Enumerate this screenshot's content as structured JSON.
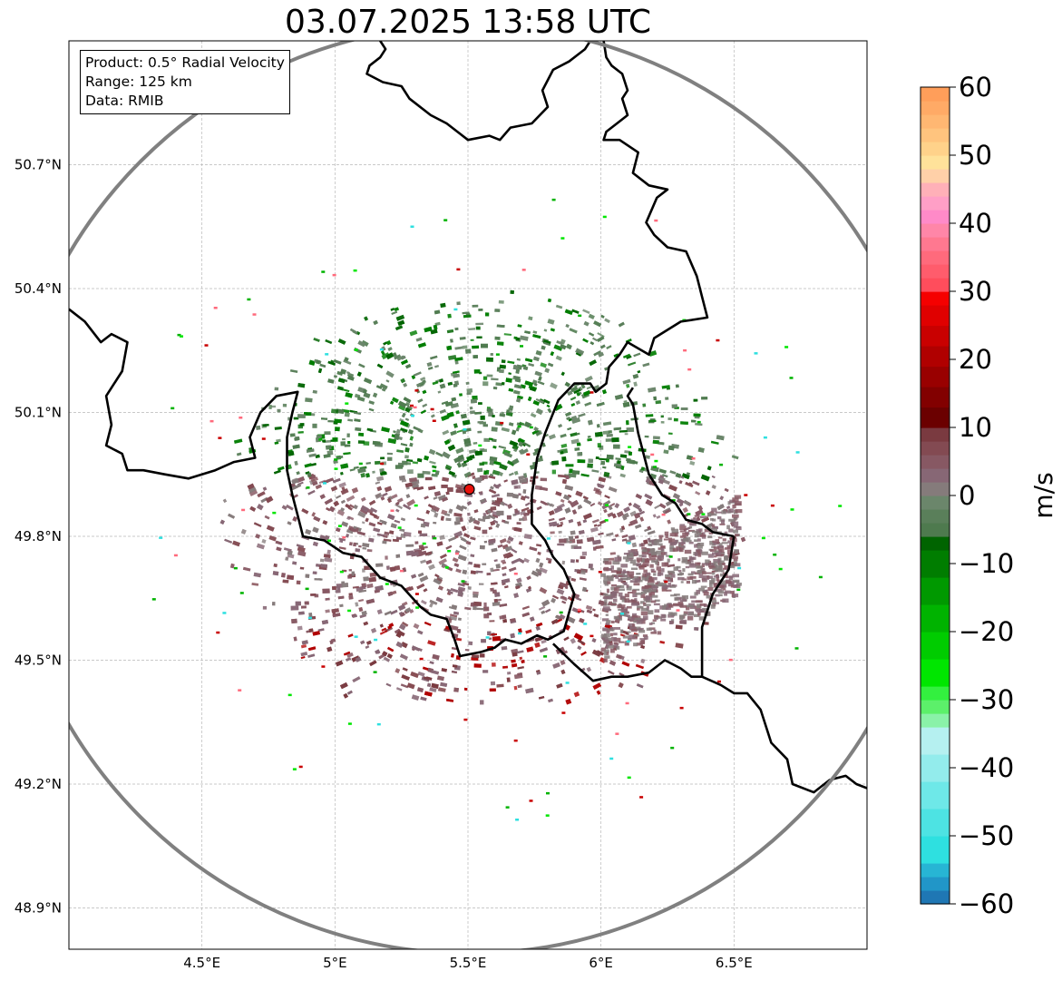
{
  "title": "03.07.2025 13:58 UTC",
  "info_box": {
    "product": "Product: 0.5° Radial Velocity",
    "range": "Range: 125 km",
    "data": "Data: RMIB"
  },
  "axes": {
    "lon_ticks": [
      {
        "value": 4.5,
        "label": "4.5°E"
      },
      {
        "value": 5.0,
        "label": "5°E"
      },
      {
        "value": 5.5,
        "label": "5.5°E"
      },
      {
        "value": 6.0,
        "label": "6°E"
      },
      {
        "value": 6.5,
        "label": "6.5°E"
      }
    ],
    "lat_ticks": [
      {
        "value": 48.9,
        "label": "48.9°N"
      },
      {
        "value": 49.2,
        "label": "49.2°N"
      },
      {
        "value": 49.5,
        "label": "49.5°N"
      },
      {
        "value": 49.8,
        "label": "49.8°N"
      },
      {
        "value": 50.1,
        "label": "50.1°N"
      },
      {
        "value": 50.4,
        "label": "50.4°N"
      },
      {
        "value": 50.7,
        "label": "50.7°N"
      }
    ],
    "lon_range": [
      4.0,
      7.0
    ],
    "lat_range": [
      48.8,
      51.0
    ],
    "grid": true
  },
  "radar": {
    "site": {
      "lon": 5.505,
      "lat": 49.914
    },
    "range_km": 125
  },
  "colorbar": {
    "label": "m/s",
    "range": [
      -60,
      60
    ],
    "ticks": [
      {
        "value": 60,
        "label": "60"
      },
      {
        "value": 50,
        "label": "50"
      },
      {
        "value": 40,
        "label": "40"
      },
      {
        "value": 30,
        "label": "30"
      },
      {
        "value": 20,
        "label": "20"
      },
      {
        "value": 10,
        "label": "10"
      },
      {
        "value": 0,
        "label": "0"
      },
      {
        "value": -10,
        "label": "−10"
      },
      {
        "value": -20,
        "label": "−20"
      },
      {
        "value": -30,
        "label": "−30"
      },
      {
        "value": -40,
        "label": "−40"
      },
      {
        "value": -50,
        "label": "−50"
      },
      {
        "value": -60,
        "label": "−60"
      }
    ],
    "stops": [
      {
        "from": -60,
        "to": -58,
        "color": "#1f77b4"
      },
      {
        "from": -58,
        "to": -56,
        "color": "#2196c8"
      },
      {
        "from": -56,
        "to": -54,
        "color": "#27b5d4"
      },
      {
        "from": -54,
        "to": -50,
        "color": "#2ee0e0"
      },
      {
        "from": -50,
        "to": -46,
        "color": "#4de3e3"
      },
      {
        "from": -46,
        "to": -42,
        "color": "#6ee8e8"
      },
      {
        "from": -42,
        "to": -38,
        "color": "#93ecec"
      },
      {
        "from": -38,
        "to": -34,
        "color": "#b5f0f0"
      },
      {
        "from": -34,
        "to": -32,
        "color": "#8af2a8"
      },
      {
        "from": -32,
        "to": -30,
        "color": "#5cf06a"
      },
      {
        "from": -30,
        "to": -28,
        "color": "#33f03f"
      },
      {
        "from": -28,
        "to": -24,
        "color": "#00e600"
      },
      {
        "from": -24,
        "to": -20,
        "color": "#00cc00"
      },
      {
        "from": -20,
        "to": -16,
        "color": "#00b300"
      },
      {
        "from": -16,
        "to": -12,
        "color": "#009900"
      },
      {
        "from": -12,
        "to": -8,
        "color": "#007d00"
      },
      {
        "from": -8,
        "to": -6,
        "color": "#006400"
      },
      {
        "from": -6,
        "to": -4,
        "color": "#4e7a4e"
      },
      {
        "from": -4,
        "to": -2,
        "color": "#5a7f5a"
      },
      {
        "from": -2,
        "to": 0,
        "color": "#6b866b"
      },
      {
        "from": 0,
        "to": 2,
        "color": "#857b7b"
      },
      {
        "from": 2,
        "to": 4,
        "color": "#876775"
      },
      {
        "from": 4,
        "to": 6,
        "color": "#875863"
      },
      {
        "from": 6,
        "to": 8,
        "color": "#834a52"
      },
      {
        "from": 8,
        "to": 10,
        "color": "#7a3a40"
      },
      {
        "from": 10,
        "to": 13,
        "color": "#6b0000"
      },
      {
        "from": 13,
        "to": 16,
        "color": "#820000"
      },
      {
        "from": 16,
        "to": 19,
        "color": "#990000"
      },
      {
        "from": 19,
        "to": 22,
        "color": "#b00000"
      },
      {
        "from": 22,
        "to": 25,
        "color": "#c90000"
      },
      {
        "from": 25,
        "to": 28,
        "color": "#e00000"
      },
      {
        "from": 28,
        "to": 30,
        "color": "#f50000"
      },
      {
        "from": 30,
        "to": 32,
        "color": "#ff4d5c"
      },
      {
        "from": 32,
        "to": 34,
        "color": "#ff5c6c"
      },
      {
        "from": 34,
        "to": 36,
        "color": "#ff6a7c"
      },
      {
        "from": 36,
        "to": 38,
        "color": "#ff7890"
      },
      {
        "from": 38,
        "to": 40,
        "color": "#ff86a8"
      },
      {
        "from": 40,
        "to": 42,
        "color": "#ff8ac8"
      },
      {
        "from": 42,
        "to": 44,
        "color": "#ff9fc6"
      },
      {
        "from": 44,
        "to": 46,
        "color": "#ffb0b8"
      },
      {
        "from": 46,
        "to": 48,
        "color": "#ffd0a8"
      },
      {
        "from": 48,
        "to": 50,
        "color": "#ffe29a"
      },
      {
        "from": 50,
        "to": 52,
        "color": "#ffd28a"
      },
      {
        "from": 52,
        "to": 54,
        "color": "#ffc47e"
      },
      {
        "from": 54,
        "to": 56,
        "color": "#ffb772"
      },
      {
        "from": 56,
        "to": 58,
        "color": "#ffaa66"
      },
      {
        "from": 58,
        "to": 60,
        "color": "#ff9e5a"
      }
    ]
  },
  "borders": {
    "belgium_luxembourg_main": [
      [
        4.0,
        50.35
      ],
      [
        4.06,
        50.32
      ],
      [
        4.12,
        50.27
      ],
      [
        4.16,
        50.29
      ],
      [
        4.22,
        50.27
      ],
      [
        4.2,
        50.2
      ],
      [
        4.14,
        50.14
      ],
      [
        4.16,
        50.07
      ],
      [
        4.14,
        50.02
      ],
      [
        4.2,
        50.0
      ],
      [
        4.22,
        49.96
      ],
      [
        4.28,
        49.96
      ],
      [
        4.36,
        49.95
      ],
      [
        4.45,
        49.94
      ],
      [
        4.55,
        49.96
      ],
      [
        4.62,
        49.98
      ],
      [
        4.7,
        49.99
      ],
      [
        4.68,
        50.04
      ],
      [
        4.72,
        50.1
      ],
      [
        4.78,
        50.14
      ],
      [
        4.86,
        50.15
      ],
      [
        4.84,
        50.1
      ],
      [
        4.82,
        50.04
      ],
      [
        4.82,
        49.96
      ],
      [
        4.84,
        49.9
      ],
      [
        4.86,
        49.85
      ],
      [
        4.88,
        49.8
      ],
      [
        4.96,
        49.79
      ],
      [
        5.03,
        49.76
      ],
      [
        5.1,
        49.75
      ],
      [
        5.17,
        49.7
      ],
      [
        5.25,
        49.68
      ],
      [
        5.32,
        49.63
      ],
      [
        5.36,
        49.61
      ],
      [
        5.42,
        49.6
      ],
      [
        5.45,
        49.55
      ],
      [
        5.47,
        49.51
      ],
      [
        5.55,
        49.52
      ],
      [
        5.6,
        49.53
      ],
      [
        5.64,
        49.55
      ],
      [
        5.7,
        49.54
      ],
      [
        5.76,
        49.56
      ],
      [
        5.8,
        49.55
      ],
      [
        5.86,
        49.57
      ],
      [
        5.9,
        49.66
      ],
      [
        5.86,
        49.72
      ],
      [
        5.82,
        49.75
      ],
      [
        5.79,
        49.79
      ],
      [
        5.74,
        49.83
      ],
      [
        5.74,
        49.9
      ],
      [
        5.76,
        49.99
      ],
      [
        5.79,
        50.05
      ],
      [
        5.84,
        50.13
      ],
      [
        5.9,
        50.17
      ],
      [
        5.96,
        50.17
      ],
      [
        5.98,
        50.15
      ],
      [
        6.02,
        50.17
      ],
      [
        6.03,
        50.21
      ],
      [
        6.07,
        50.24
      ],
      [
        6.1,
        50.27
      ],
      [
        6.18,
        50.24
      ],
      [
        6.2,
        50.28
      ],
      [
        6.3,
        50.32
      ],
      [
        6.4,
        50.33
      ],
      [
        6.38,
        50.38
      ],
      [
        6.36,
        50.43
      ],
      [
        6.32,
        50.49
      ],
      [
        6.25,
        50.5
      ],
      [
        6.2,
        50.53
      ],
      [
        6.17,
        50.56
      ],
      [
        6.21,
        50.62
      ],
      [
        6.25,
        50.64
      ],
      [
        6.18,
        50.65
      ],
      [
        6.12,
        50.68
      ],
      [
        6.14,
        50.73
      ],
      [
        6.07,
        50.76
      ],
      [
        6.01,
        50.76
      ],
      [
        6.02,
        50.78
      ],
      [
        6.06,
        50.8
      ],
      [
        6.1,
        50.82
      ],
      [
        6.08,
        50.86
      ],
      [
        6.1,
        50.88
      ],
      [
        6.08,
        50.92
      ],
      [
        6.04,
        50.94
      ],
      [
        6.02,
        50.96
      ],
      [
        6.01,
        51.0
      ]
    ],
    "luxembourg_east_germany": [
      [
        6.5,
        49.8
      ],
      [
        6.42,
        49.81
      ],
      [
        6.38,
        49.83
      ],
      [
        6.32,
        49.84
      ],
      [
        6.28,
        49.88
      ],
      [
        6.23,
        49.9
      ],
      [
        6.18,
        49.95
      ],
      [
        6.14,
        50.05
      ],
      [
        6.12,
        50.12
      ],
      [
        6.1,
        50.14
      ],
      [
        6.12,
        50.16
      ]
    ],
    "luxembourg_south_france": [
      [
        5.82,
        49.54
      ],
      [
        5.9,
        49.49
      ],
      [
        5.97,
        49.45
      ],
      [
        6.04,
        49.46
      ],
      [
        6.1,
        49.46
      ],
      [
        6.18,
        49.47
      ],
      [
        6.24,
        49.5
      ],
      [
        6.3,
        49.48
      ],
      [
        6.34,
        49.46
      ],
      [
        6.38,
        49.46
      ]
    ],
    "germany_france": [
      [
        6.5,
        49.8
      ],
      [
        6.48,
        49.72
      ],
      [
        6.42,
        49.66
      ],
      [
        6.38,
        49.58
      ],
      [
        6.38,
        49.46
      ],
      [
        6.45,
        49.44
      ],
      [
        6.5,
        49.42
      ],
      [
        6.55,
        49.42
      ],
      [
        6.6,
        49.38
      ],
      [
        6.64,
        49.3
      ],
      [
        6.7,
        49.26
      ],
      [
        6.72,
        49.2
      ],
      [
        6.8,
        49.18
      ],
      [
        6.86,
        49.21
      ],
      [
        6.92,
        49.22
      ],
      [
        6.96,
        49.2
      ],
      [
        7.0,
        49.19
      ]
    ],
    "lorraine_sliver": [
      [
        5.17,
        51.0
      ],
      [
        5.19,
        50.98
      ],
      [
        5.17,
        50.96
      ],
      [
        5.13,
        50.94
      ],
      [
        5.12,
        50.92
      ],
      [
        5.18,
        50.9
      ],
      [
        5.25,
        50.89
      ],
      [
        5.28,
        50.86
      ],
      [
        5.36,
        50.82
      ],
      [
        5.42,
        50.8
      ],
      [
        5.5,
        50.76
      ],
      [
        5.58,
        50.77
      ],
      [
        5.62,
        50.76
      ],
      [
        5.66,
        50.79
      ],
      [
        5.74,
        50.8
      ],
      [
        5.8,
        50.84
      ],
      [
        5.78,
        50.88
      ],
      [
        5.82,
        50.93
      ],
      [
        5.88,
        50.95
      ],
      [
        5.94,
        50.98
      ],
      [
        5.96,
        51.0
      ]
    ]
  },
  "echoes": {
    "cluster_center": {
      "lon": 5.55,
      "lat": 49.88
    },
    "bands": [
      {
        "lat_from": 49.95,
        "lat_to": 50.4,
        "colors": [
          "#5a7f5a",
          "#6b866b",
          "#4e7a4e",
          "#006400",
          "#007d00"
        ]
      },
      {
        "lat_from": 49.6,
        "lat_to": 49.95,
        "colors": [
          "#857b7b",
          "#876775",
          "#875863",
          "#834a52"
        ]
      },
      {
        "lat_from": 49.4,
        "lat_to": 49.6,
        "colors": [
          "#876775",
          "#875863",
          "#7a3a40",
          "#b00000"
        ]
      }
    ],
    "accent_colors": [
      "#00e600",
      "#00b300",
      "#c90000",
      "#ff6a7c",
      "#2ee0e0"
    ]
  }
}
